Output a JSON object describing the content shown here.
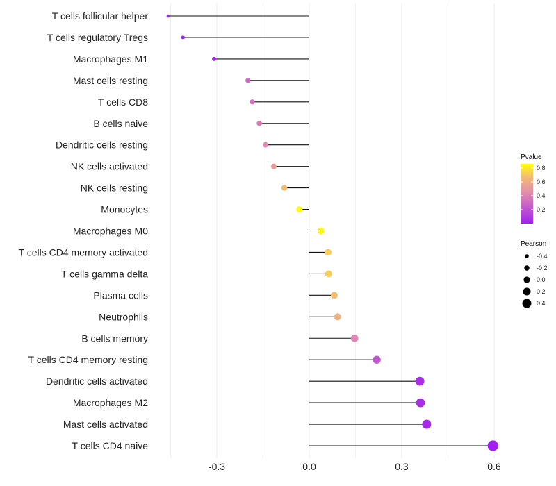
{
  "chart_data": {
    "type": "lollipop",
    "title": "",
    "xlabel": "",
    "ylabel": "",
    "xlim": [
      -0.48,
      0.64
    ],
    "x_ticks": [
      -0.3,
      0.0,
      0.3,
      0.6
    ],
    "x_tick_labels": [
      "-0.3",
      "0.0",
      "0.3",
      "0.6"
    ],
    "grid": true,
    "categories": [
      "T cells follicular helper",
      "T cells regulatory  Tregs",
      "Macrophages M1",
      "Mast cells resting",
      "T cells CD8",
      "B cells naive",
      "Dendritic cells resting",
      "NK cells activated",
      "NK cells resting",
      "Monocytes",
      "Macrophages M0",
      "T cells CD4 memory activated",
      "T cells gamma delta",
      "Plasma cells",
      "Neutrophils",
      "B cells memory",
      "T cells CD4 memory resting",
      "Dendritic cells activated",
      "Macrophages M2",
      "Mast cells activated",
      "T cells CD4 naive"
    ],
    "pearson": [
      -0.458,
      -0.41,
      -0.309,
      -0.199,
      -0.185,
      -0.162,
      -0.142,
      -0.115,
      -0.081,
      -0.032,
      0.038,
      0.061,
      0.063,
      0.081,
      0.092,
      0.147,
      0.219,
      0.359,
      0.361,
      0.381,
      0.596
    ],
    "pvalue": [
      0.001,
      0.01,
      0.04,
      0.3,
      0.32,
      0.38,
      0.42,
      0.52,
      0.68,
      0.86,
      0.84,
      0.72,
      0.72,
      0.68,
      0.62,
      0.42,
      0.22,
      0.06,
      0.06,
      0.04,
      0.001
    ],
    "color_scale": {
      "low": "#a020f0",
      "high": "#ffff00",
      "domain": [
        0,
        0.86
      ]
    },
    "legend_color": {
      "title": "Pvalue",
      "ticks": [
        0.8,
        0.6,
        0.4,
        0.2
      ],
      "labels": [
        "0.8",
        "0.6",
        "0.4",
        "0.2"
      ],
      "placement": "right"
    },
    "legend_size": {
      "title": "Pearson",
      "values": [
        -0.4,
        -0.2,
        0.0,
        0.2,
        0.4
      ],
      "labels": [
        "-0.4",
        "-0.2",
        "0.0",
        "0.2",
        "0.4"
      ],
      "placement": "right"
    }
  }
}
